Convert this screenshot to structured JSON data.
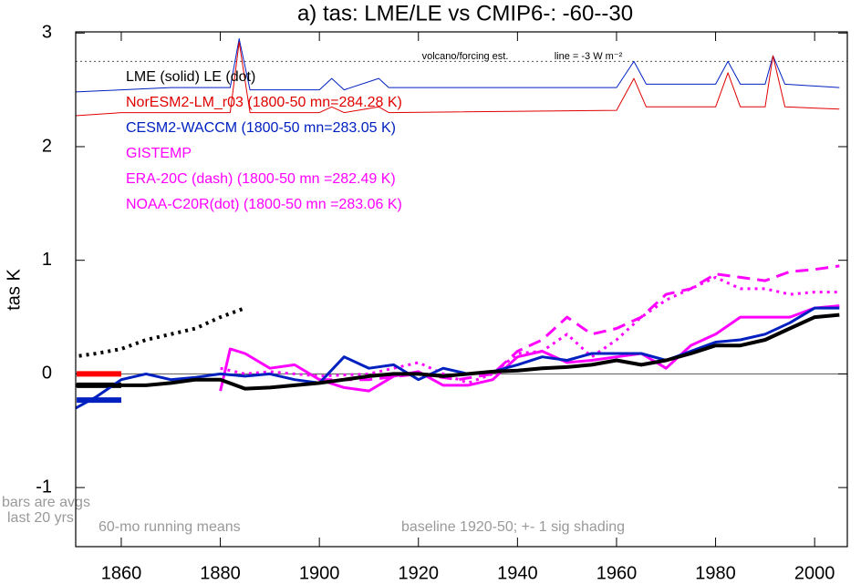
{
  "chart_data": {
    "type": "line",
    "title": "a) tas: LME/LE vs CMIP6-: -60--30",
    "y_label": "tas K",
    "xlim": [
      1850.8,
      2006.6
    ],
    "ylim": [
      -1.52,
      3.01
    ],
    "xticks": [
      1860,
      1880,
      1900,
      1920,
      1940,
      1960,
      1980,
      2000
    ],
    "yticks": [
      -1,
      0,
      1,
      2,
      3
    ],
    "zero_line": 0,
    "forcing_line": 2.75,
    "legend": [
      {
        "text": "LME (solid)   LE (dot)",
        "color": "#000000"
      },
      {
        "text": "NorESM2-LM_r03 (1800-50 mn=284.28 K)",
        "color": "#e00000"
      },
      {
        "text": "CESM2-WACCM (1800-50 mn=283.05 K)",
        "color": "#0020c0"
      },
      {
        "text": "GISTEMP",
        "color": "#ff00ff"
      },
      {
        "text": "ERA-20C (dash) (1800-50 mn =282.49 K)",
        "color": "#ff00ff"
      },
      {
        "text": "NOAA-C20R(dot) (1800-50 mn =283.06 K)",
        "color": "#ff00ff"
      }
    ],
    "annotations": [
      "volcano/forcing est.",
      "line = -3 W m⁻²",
      "bars are avgs",
      "last 20 yrs",
      "60-mo running means",
      "baseline 1920-50; +- 1 sig shading"
    ],
    "series": [
      {
        "color": "#0020c0",
        "width": 1,
        "style": "solid",
        "x": [
          1850,
          1860,
          1870,
          1882,
          1883.8,
          1886,
          1900,
          1902.5,
          1905,
          1912,
          1914,
          1960,
          1963.5,
          1966,
          1980,
          1982.5,
          1985,
          1990,
          1991.6,
          1994,
          2005
        ],
        "values": [
          2.48,
          2.5,
          2.52,
          2.52,
          2.95,
          2.5,
          2.5,
          2.6,
          2.5,
          2.6,
          2.52,
          2.52,
          2.75,
          2.55,
          2.55,
          2.75,
          2.55,
          2.55,
          2.8,
          2.55,
          2.52
        ]
      },
      {
        "color": "#e00000",
        "width": 1,
        "style": "solid",
        "x": [
          1850,
          1860,
          1870,
          1882,
          1883.8,
          1886,
          1900,
          1902.5,
          1905,
          1912,
          1914,
          1960,
          1963.5,
          1966,
          1980,
          1982.5,
          1985,
          1990,
          1991.6,
          1994,
          2005
        ],
        "values": [
          2.27,
          2.3,
          2.3,
          2.3,
          2.92,
          2.3,
          2.3,
          2.35,
          2.3,
          2.35,
          2.3,
          2.32,
          2.6,
          2.35,
          2.35,
          2.65,
          2.35,
          2.35,
          2.8,
          2.35,
          2.33
        ]
      },
      {
        "color": "#000000",
        "width": 4,
        "style": "dot",
        "x": [
          1850,
          1855,
          1860,
          1865,
          1870,
          1875,
          1880,
          1885
        ],
        "values": [
          0.15,
          0.18,
          0.22,
          0.3,
          0.35,
          0.4,
          0.5,
          0.58
        ]
      },
      {
        "color": "#ff00ff",
        "width": 3,
        "style": "dot",
        "x": [
          1880,
          1885,
          1890,
          1895,
          1900,
          1910,
          1920,
          1925,
          1930,
          1935,
          1940,
          1945,
          1950,
          1955,
          1960,
          1965,
          1970,
          1975,
          1980,
          1985,
          1990,
          1995,
          2000,
          2005
        ],
        "values": [
          0.05,
          0.0,
          0.02,
          0.0,
          -0.02,
          0.0,
          0.1,
          0.0,
          -0.08,
          0.0,
          0.18,
          0.2,
          0.35,
          0.15,
          0.3,
          0.5,
          0.65,
          0.75,
          0.85,
          0.75,
          0.75,
          0.7,
          0.72,
          0.72
        ]
      },
      {
        "color": "#ff00ff",
        "width": 3,
        "style": "dash",
        "x": [
          1900,
          1910,
          1920,
          1928,
          1935,
          1940,
          1945,
          1950,
          1955,
          1960,
          1965,
          1970,
          1975,
          1980,
          1985,
          1990,
          1995,
          2000,
          2005
        ],
        "values": [
          -0.05,
          -0.05,
          0.0,
          -0.05,
          0.0,
          0.2,
          0.3,
          0.5,
          0.35,
          0.4,
          0.5,
          0.7,
          0.75,
          0.88,
          0.85,
          0.82,
          0.9,
          0.92,
          0.95
        ]
      },
      {
        "color": "#ff00ff",
        "width": 3,
        "style": "solid",
        "x": [
          1880,
          1882,
          1885,
          1890,
          1895,
          1900,
          1905,
          1910,
          1915,
          1920,
          1925,
          1930,
          1935,
          1940,
          1945,
          1950,
          1955,
          1960,
          1965,
          1970,
          1975,
          1980,
          1985,
          1990,
          1995,
          2000,
          2005
        ],
        "values": [
          -0.15,
          0.22,
          0.18,
          0.05,
          0.08,
          -0.05,
          -0.12,
          -0.15,
          -0.02,
          0.02,
          -0.1,
          -0.1,
          -0.05,
          0.15,
          0.2,
          0.1,
          0.12,
          0.15,
          0.18,
          0.05,
          0.25,
          0.35,
          0.5,
          0.5,
          0.5,
          0.58,
          0.6
        ]
      },
      {
        "color": "#0020c0",
        "width": 3,
        "style": "solid",
        "x": [
          1850,
          1855,
          1860,
          1865,
          1870,
          1875,
          1880,
          1885,
          1890,
          1895,
          1900,
          1905,
          1910,
          1915,
          1920,
          1925,
          1930,
          1935,
          1940,
          1945,
          1950,
          1955,
          1960,
          1965,
          1970,
          1975,
          1980,
          1985,
          1990,
          1995,
          2000,
          2005
        ],
        "values": [
          -0.32,
          -0.2,
          -0.05,
          0.0,
          -0.05,
          -0.03,
          0.0,
          -0.02,
          0.0,
          -0.05,
          -0.08,
          0.15,
          0.05,
          0.08,
          -0.05,
          0.05,
          0.0,
          0.02,
          0.08,
          0.15,
          0.12,
          0.18,
          0.18,
          0.18,
          0.12,
          0.2,
          0.28,
          0.3,
          0.35,
          0.45,
          0.58,
          0.58
        ]
      },
      {
        "color": "#000000",
        "width": 4,
        "style": "solid",
        "x": [
          1850,
          1855,
          1860,
          1865,
          1870,
          1875,
          1880,
          1885,
          1890,
          1895,
          1900,
          1905,
          1910,
          1915,
          1920,
          1925,
          1930,
          1935,
          1940,
          1945,
          1950,
          1955,
          1960,
          1965,
          1970,
          1975,
          1980,
          1985,
          1990,
          1995,
          2000,
          2005
        ],
        "values": [
          -0.1,
          -0.1,
          -0.1,
          -0.1,
          -0.08,
          -0.05,
          -0.05,
          -0.13,
          -0.12,
          -0.1,
          -0.08,
          -0.05,
          -0.02,
          0.0,
          0.0,
          -0.02,
          0.0,
          0.02,
          0.03,
          0.05,
          0.06,
          0.08,
          0.12,
          0.08,
          0.12,
          0.18,
          0.25,
          0.25,
          0.3,
          0.4,
          0.5,
          0.52
        ]
      }
    ],
    "bars": [
      {
        "x": [
          1851,
          1860
        ],
        "value": 0,
        "color": "#ff0000"
      },
      {
        "x": [
          1851,
          1860
        ],
        "value": -0.1,
        "color": "#000000"
      },
      {
        "x": [
          1851,
          1860
        ],
        "value": -0.23,
        "color": "#0020c0"
      }
    ]
  }
}
